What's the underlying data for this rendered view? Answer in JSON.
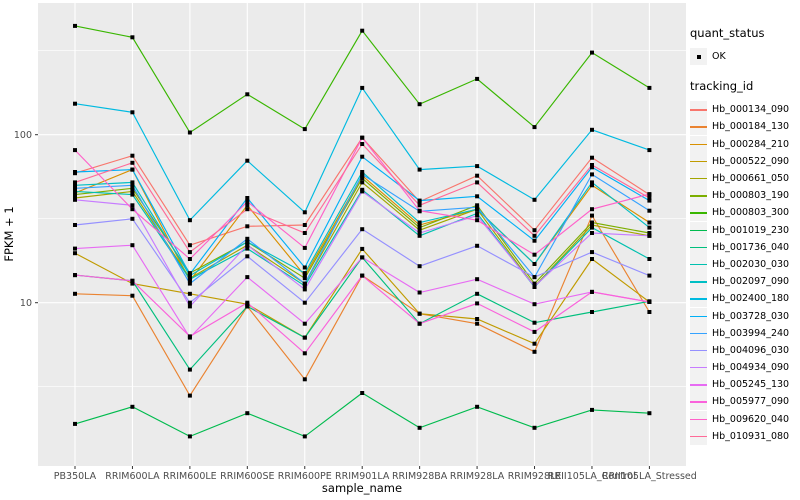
{
  "chart_data": {
    "type": "line",
    "title": "",
    "xlabel": "sample_name",
    "ylabel": "FPKM + 1",
    "y_scale": "log10",
    "ylim": [
      1.07,
      608
    ],
    "y_ticks": [
      {
        "label": "10",
        "value": 10
      },
      {
        "label": "100",
        "value": 100
      }
    ],
    "y_minor_gridlines": [
      3.1623,
      31.623,
      316.23
    ],
    "grid": "on",
    "legend_position": "right",
    "point_marker": "black-square",
    "categories": [
      "PB350LA",
      "RRIM600LA",
      "RRIM600LE",
      "RRIM600SE",
      "RRIM600PE",
      "RRIM901LA",
      "RRIM928BA",
      "RRIM928LA",
      "RRIM928LE",
      "RRII105LA_Control",
      "RRII105LA_Stressed"
    ],
    "series": [
      {
        "name": "Hb_000134_090",
        "color": "#F8766D",
        "values": [
          59,
          75,
          22,
          28.5,
          29,
          96,
          40,
          57,
          27,
          73,
          44
        ]
      },
      {
        "name": "Hb_000184_130",
        "color": "#EA8331",
        "values": [
          11.3,
          11,
          2.8,
          9.5,
          3.5,
          14.5,
          8.6,
          7.5,
          5.1,
          33,
          8.8
        ]
      },
      {
        "name": "Hb_000284_210",
        "color": "#D89000",
        "values": [
          45,
          62,
          13.5,
          38,
          14.5,
          57,
          29,
          36,
          17,
          50,
          30
        ]
      },
      {
        "name": "Hb_000522_090",
        "color": "#C09B00",
        "values": [
          19.7,
          13,
          11.3,
          9.8,
          6.2,
          20.9,
          8.6,
          8,
          5.7,
          18.2,
          10.1
        ]
      },
      {
        "name": "Hb_000661_050",
        "color": "#A3A500",
        "values": [
          42,
          46,
          14,
          22,
          13,
          52,
          27,
          36,
          12.5,
          29,
          25
        ]
      },
      {
        "name": "Hb_000803_190",
        "color": "#7CAE00",
        "values": [
          44,
          48,
          15,
          23,
          14,
          55,
          28,
          38,
          13,
          30,
          26
        ]
      },
      {
        "name": "Hb_000803_300",
        "color": "#39B600",
        "values": [
          444,
          380,
          103,
          174,
          108,
          416,
          152,
          215,
          111,
          308,
          190
        ]
      },
      {
        "name": "Hb_001019_230",
        "color": "#00BB4E",
        "values": [
          1.9,
          2.4,
          1.6,
          2.2,
          1.6,
          2.9,
          1.8,
          2.4,
          1.8,
          2.3,
          2.2
        ]
      },
      {
        "name": "Hb_001736_040",
        "color": "#00BF7D",
        "values": [
          14.6,
          13.5,
          4,
          9.5,
          6.2,
          18.6,
          7.5,
          11.3,
          7.6,
          8.8,
          10.2
        ]
      },
      {
        "name": "Hb_002030_030",
        "color": "#00C0AF",
        "values": [
          46,
          44,
          13.8,
          21,
          12.6,
          47,
          25,
          34,
          12.4,
          28,
          18.2
        ]
      },
      {
        "name": "Hb_002097_090",
        "color": "#00BFC4",
        "values": [
          50,
          52,
          14.5,
          23,
          15,
          60,
          30,
          36,
          17,
          52,
          28
        ]
      },
      {
        "name": "Hb_002400_180",
        "color": "#00BAE0",
        "values": [
          153,
          136,
          31,
          70,
          34.5,
          190,
          62,
          65,
          41,
          107,
          81
        ]
      },
      {
        "name": "Hb_003728_030",
        "color": "#00B0F6",
        "values": [
          60,
          62,
          14.8,
          42,
          16.2,
          74,
          40.5,
          43,
          23.4,
          64,
          40.5
        ]
      },
      {
        "name": "Hb_003994_240",
        "color": "#35A2FF",
        "values": [
          48,
          50,
          13,
          24,
          13,
          58,
          35,
          37,
          14.2,
          58,
          35.3
        ]
      },
      {
        "name": "Hb_004096_030",
        "color": "#9590FF",
        "values": [
          29,
          31.6,
          10,
          18.9,
          10,
          27.4,
          16.5,
          21.8,
          14.2,
          20,
          14.5
        ]
      },
      {
        "name": "Hb_004934_090",
        "color": "#C77CFF",
        "values": [
          41,
          38,
          9.5,
          22,
          12,
          46,
          26,
          33,
          12.5,
          26,
          25
        ]
      },
      {
        "name": "Hb_005245_130",
        "color": "#E76BF3",
        "values": [
          21,
          22,
          6.2,
          14.2,
          7.5,
          18.6,
          11.5,
          13.8,
          9.8,
          11.6,
          10.1
        ]
      },
      {
        "name": "Hb_005977_090",
        "color": "#FA62DB",
        "values": [
          14.6,
          13.5,
          6.3,
          10,
          5,
          14.5,
          7.5,
          9.9,
          6.7,
          11.6,
          10.1
        ]
      },
      {
        "name": "Hb_009620_040",
        "color": "#FF61C9",
        "values": [
          81,
          36,
          18.2,
          40,
          21.2,
          96,
          35.3,
          31,
          19.3,
          36,
          44.3
        ]
      },
      {
        "name": "Hb_010931_080",
        "color": "#FF6A98",
        "values": [
          52,
          68,
          20,
          36,
          26,
          88,
          38,
          52,
          25,
          66,
          42
        ]
      }
    ]
  },
  "legend": {
    "quant_status_title": "quant_status",
    "quant_status_items": [
      {
        "label": "OK",
        "marker": "black-square"
      }
    ],
    "tracking_title": "tracking_id"
  },
  "colors": {
    "panel_background": "#EBEBEB",
    "gridline": "#FFFFFF",
    "tick_mark": "#333333",
    "tick_label": "#4D4D4D",
    "point": "#000000",
    "legend_key_background": "#F2F2F2"
  }
}
